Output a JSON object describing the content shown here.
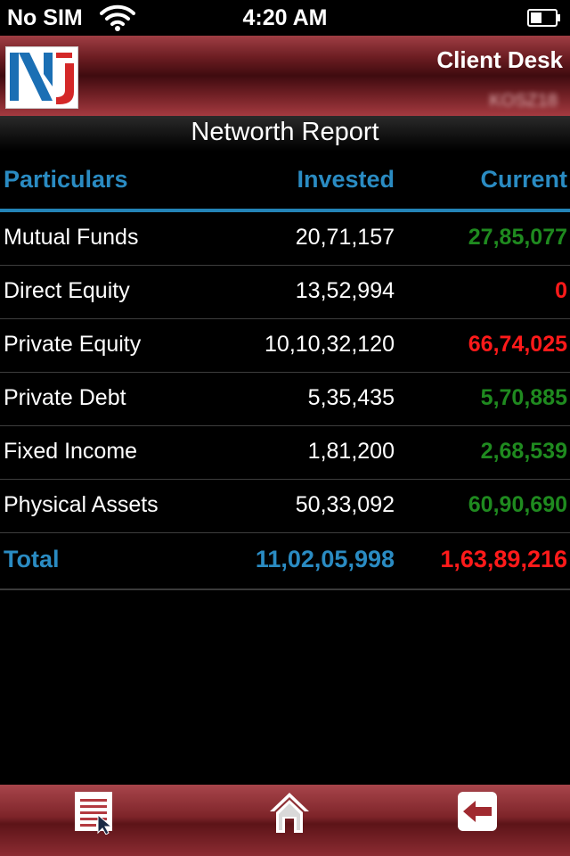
{
  "status": {
    "carrier": "No SIM",
    "time": "4:20 AM"
  },
  "header": {
    "title": "Client Desk",
    "user": "KOSZ18"
  },
  "report": {
    "title": "Networth Report",
    "columns": [
      "Particulars",
      "Invested",
      "Current"
    ],
    "rows": [
      {
        "name": "Mutual Funds",
        "invested": "20,71,157",
        "current": "27,85,077",
        "current_color": "#1f8a1f"
      },
      {
        "name": "Direct Equity",
        "invested": "13,52,994",
        "current": "0",
        "current_color": "#ff1a1a"
      },
      {
        "name": "Private Equity",
        "invested": "10,10,32,120",
        "current": "66,74,025",
        "current_color": "#ff1a1a"
      },
      {
        "name": "Private Debt",
        "invested": "5,35,435",
        "current": "5,70,885",
        "current_color": "#1f8a1f"
      },
      {
        "name": "Fixed Income",
        "invested": "1,81,200",
        "current": "2,68,539",
        "current_color": "#1f8a1f"
      },
      {
        "name": "Physical Assets",
        "invested": "50,33,092",
        "current": "60,90,690",
        "current_color": "#1f8a1f"
      }
    ],
    "total": {
      "label": "Total",
      "invested": "11,02,05,998",
      "current": "1,63,89,216",
      "current_color": "#ff1a1a"
    }
  },
  "toolbar": {
    "menu_icon": "menu-list-icon",
    "home_icon": "home-icon",
    "back_icon": "back-arrow-icon"
  },
  "colors": {
    "accent": "#2a8bc2",
    "gain": "#1f8a1f",
    "loss": "#ff1a1a",
    "header": "#7a2a2f"
  }
}
